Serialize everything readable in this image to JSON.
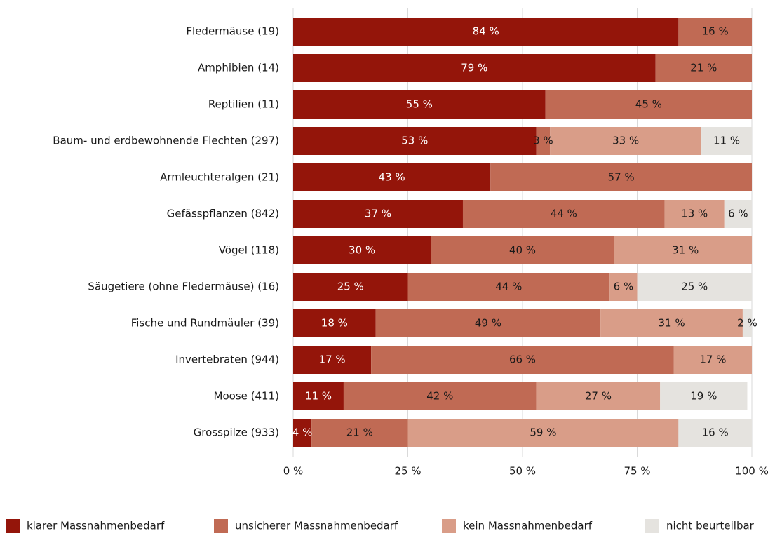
{
  "chart_data": {
    "type": "stacked-barh",
    "categories": [
      "Fledermäuse (19)",
      "Amphibien (14)",
      "Reptilien (11)",
      "Baum- und erdbewohnende Flechten (297)",
      "Armleuchteralgen (21)",
      "Gefässpflanzen (842)",
      "Vögel (118)",
      "Säugetiere (ohne Fledermäuse) (16)",
      "Fische und Rundmäuler (39)",
      "Invertebraten (944)",
      "Moose (411)",
      "Grosspilze (933)"
    ],
    "series": [
      {
        "name": "klarer Massnahmenbedarf",
        "color": "#94150a",
        "values": [
          84,
          79,
          55,
          53,
          43,
          37,
          30,
          25,
          18,
          17,
          11,
          4
        ],
        "value_labels": [
          "84 %",
          "79 %",
          "55 %",
          "53 %",
          "43 %",
          "37 %",
          "30 %",
          "25 %",
          "18 %",
          "17 %",
          "11 %",
          "4 %"
        ]
      },
      {
        "name": "unsicherer Massnahmenbedarf",
        "color": "#c06a54",
        "values": [
          16,
          21,
          45,
          3,
          57,
          44,
          40,
          44,
          49,
          66,
          42,
          21
        ],
        "value_labels": [
          "16 %",
          "21 %",
          "45 %",
          "3 %",
          "57 %",
          "44 %",
          "40 %",
          "44 %",
          "49 %",
          "66 %",
          "42 %",
          "21 %"
        ]
      },
      {
        "name": "kein Massnahmenbedarf",
        "color": "#d99d88",
        "values": [
          null,
          null,
          null,
          33,
          null,
          13,
          31,
          6,
          31,
          17,
          27,
          59
        ],
        "value_labels": [
          null,
          null,
          null,
          "33 %",
          null,
          "13 %",
          "31 %",
          "6 %",
          "31 %",
          "17 %",
          "27 %",
          "59 %"
        ]
      },
      {
        "name": "nicht beurteilbar",
        "color": "#e5e3df",
        "values": [
          null,
          null,
          null,
          11,
          null,
          6,
          null,
          25,
          2,
          null,
          19,
          16
        ],
        "value_labels": [
          null,
          null,
          null,
          "11 %",
          null,
          "6 %",
          null,
          "25 %",
          "2 %",
          null,
          "19 %",
          "16 %"
        ]
      }
    ],
    "xlim": [
      0,
      100
    ],
    "xticks": [
      {
        "value": 0,
        "label": "0 %"
      },
      {
        "value": 25,
        "label": "25 %"
      },
      {
        "value": 50,
        "label": "50 %"
      },
      {
        "value": 75,
        "label": "75 %"
      },
      {
        "value": 100,
        "label": "100 %"
      }
    ],
    "grid": true
  }
}
